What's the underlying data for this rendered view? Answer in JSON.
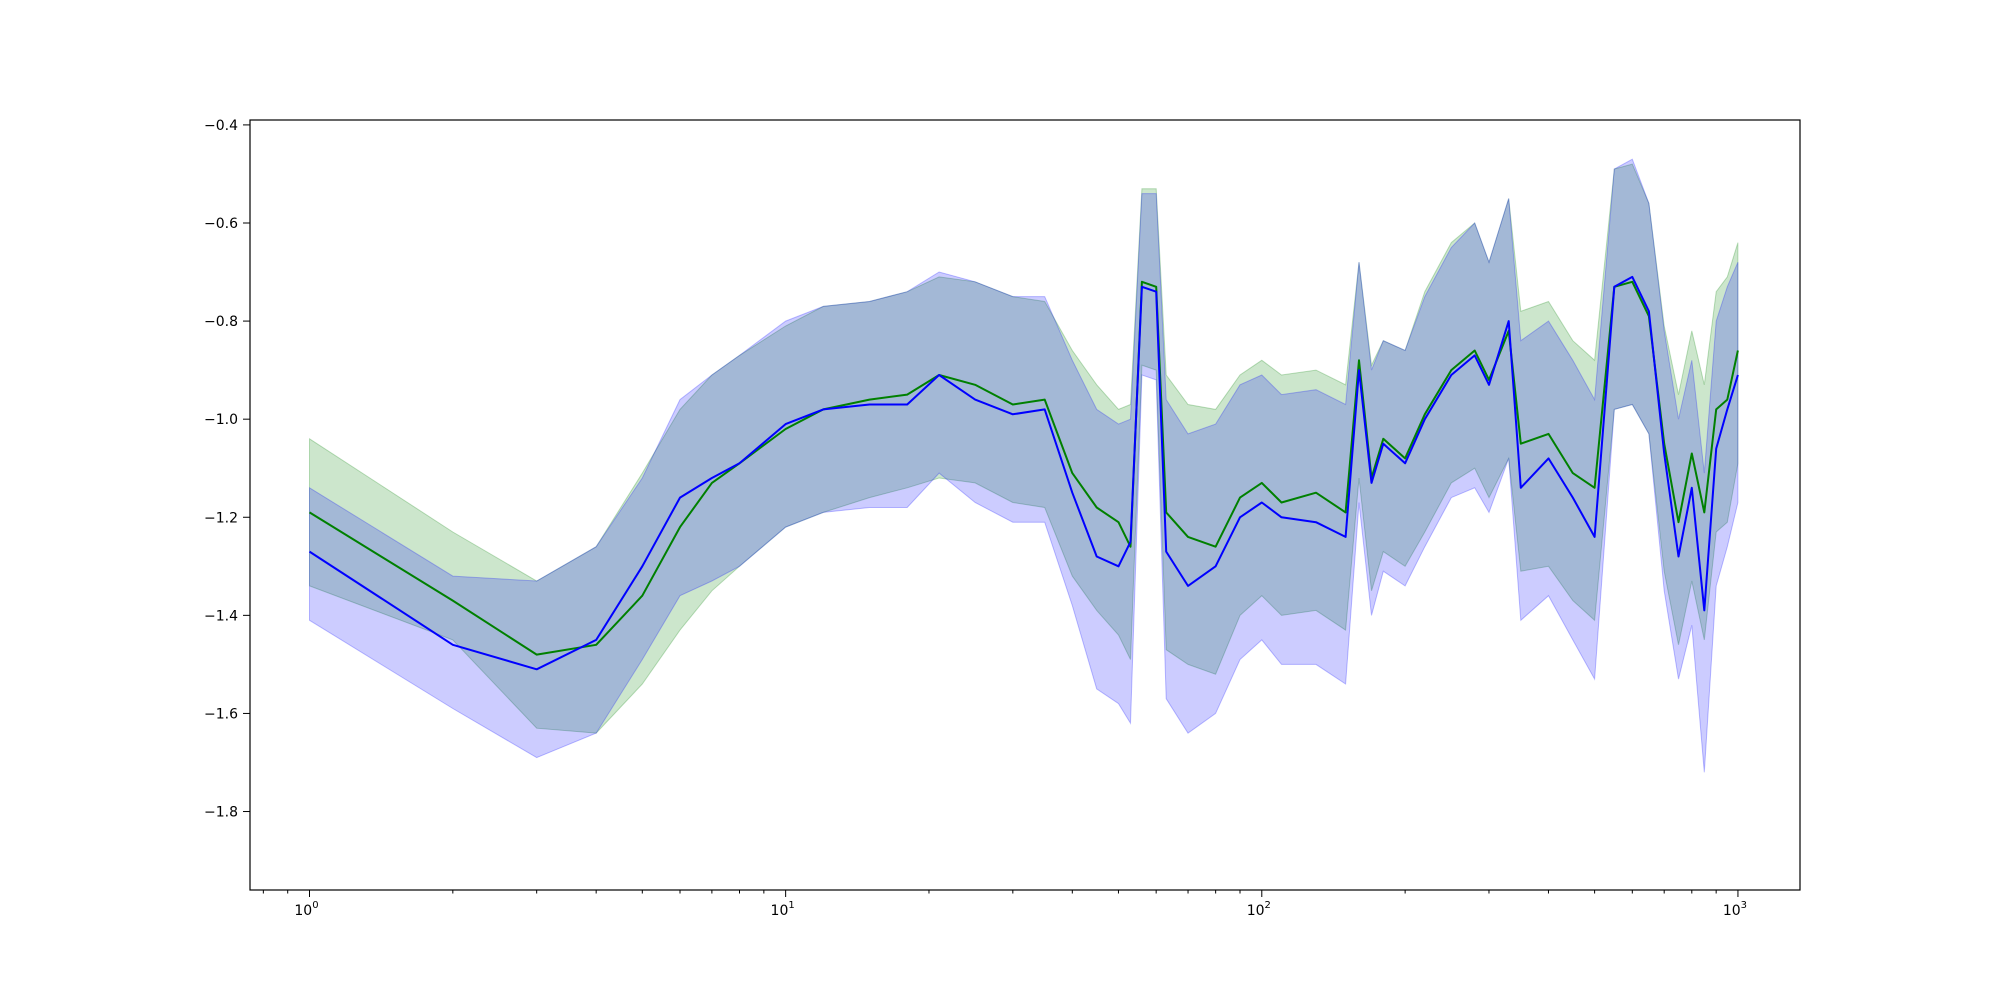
{
  "chart_data": {
    "type": "line",
    "title": "",
    "xlabel": "",
    "ylabel": "",
    "xscale": "log",
    "xlim": [
      0.75,
      1350
    ],
    "ylim": [
      -1.96,
      -0.39
    ],
    "grid": false,
    "legend": "none",
    "x_tick_labels": [
      {
        "value": 1,
        "base": "10",
        "exp": "0"
      },
      {
        "value": 10,
        "base": "10",
        "exp": "1"
      },
      {
        "value": 100,
        "base": "10",
        "exp": "2"
      },
      {
        "value": 1000,
        "base": "10",
        "exp": "3"
      }
    ],
    "y_ticks": [
      -1.8,
      -1.6,
      -1.4,
      -1.2,
      -1.0,
      -0.8,
      -0.6,
      -0.4
    ],
    "y_tick_labels": [
      "−1.8",
      "−1.6",
      "−1.4",
      "−1.2",
      "−1.0",
      "−0.8",
      "−0.6",
      "−0.4"
    ],
    "series": [
      {
        "color": "#008000",
        "band_color": "#008000",
        "band_opacity": 0.2,
        "points": [
          [
            1,
            -1.19,
            -1.04,
            -1.34
          ],
          [
            2,
            -1.37,
            -1.23,
            -1.45
          ],
          [
            3,
            -1.48,
            -1.33,
            -1.63
          ],
          [
            4,
            -1.46,
            -1.26,
            -1.64
          ],
          [
            5,
            -1.36,
            -1.11,
            -1.54
          ],
          [
            6,
            -1.22,
            -0.98,
            -1.43
          ],
          [
            7,
            -1.13,
            -0.91,
            -1.35
          ],
          [
            8,
            -1.09,
            -0.87,
            -1.3
          ],
          [
            10,
            -1.02,
            -0.81,
            -1.22
          ],
          [
            12,
            -0.98,
            -0.77,
            -1.19
          ],
          [
            15,
            -0.96,
            -0.76,
            -1.16
          ],
          [
            18,
            -0.95,
            -0.74,
            -1.14
          ],
          [
            21,
            -0.91,
            -0.71,
            -1.12
          ],
          [
            25,
            -0.93,
            -0.72,
            -1.13
          ],
          [
            30,
            -0.97,
            -0.75,
            -1.17
          ],
          [
            35,
            -0.96,
            -0.76,
            -1.18
          ],
          [
            40,
            -1.11,
            -0.86,
            -1.32
          ],
          [
            45,
            -1.18,
            -0.93,
            -1.39
          ],
          [
            50,
            -1.21,
            -0.98,
            -1.44
          ],
          [
            53,
            -1.26,
            -0.97,
            -1.49
          ],
          [
            56,
            -0.72,
            -0.53,
            -0.89
          ],
          [
            60,
            -0.73,
            -0.53,
            -0.9
          ],
          [
            63,
            -1.19,
            -0.91,
            -1.47
          ],
          [
            70,
            -1.24,
            -0.97,
            -1.5
          ],
          [
            80,
            -1.26,
            -0.98,
            -1.52
          ],
          [
            90,
            -1.16,
            -0.91,
            -1.4
          ],
          [
            100,
            -1.13,
            -0.88,
            -1.36
          ],
          [
            110,
            -1.17,
            -0.91,
            -1.4
          ],
          [
            130,
            -1.15,
            -0.9,
            -1.39
          ],
          [
            150,
            -1.19,
            -0.93,
            -1.43
          ],
          [
            160,
            -0.88,
            -0.68,
            -1.12
          ],
          [
            170,
            -1.12,
            -0.89,
            -1.35
          ],
          [
            180,
            -1.04,
            -0.84,
            -1.27
          ],
          [
            200,
            -1.08,
            -0.86,
            -1.3
          ],
          [
            220,
            -0.99,
            -0.74,
            -1.23
          ],
          [
            250,
            -0.9,
            -0.64,
            -1.13
          ],
          [
            280,
            -0.86,
            -0.6,
            -1.1
          ],
          [
            300,
            -0.92,
            -0.68,
            -1.16
          ],
          [
            330,
            -0.82,
            -0.55,
            -1.08
          ],
          [
            350,
            -1.05,
            -0.78,
            -1.31
          ],
          [
            400,
            -1.03,
            -0.76,
            -1.3
          ],
          [
            450,
            -1.11,
            -0.84,
            -1.37
          ],
          [
            500,
            -1.14,
            -0.88,
            -1.41
          ],
          [
            550,
            -0.73,
            -0.49,
            -0.98
          ],
          [
            600,
            -0.72,
            -0.48,
            -0.97
          ],
          [
            650,
            -0.79,
            -0.56,
            -1.03
          ],
          [
            700,
            -1.05,
            -0.81,
            -1.31
          ],
          [
            750,
            -1.21,
            -0.95,
            -1.46
          ],
          [
            800,
            -1.07,
            -0.82,
            -1.33
          ],
          [
            850,
            -1.19,
            -0.93,
            -1.45
          ],
          [
            900,
            -0.98,
            -0.74,
            -1.23
          ],
          [
            950,
            -0.96,
            -0.71,
            -1.21
          ],
          [
            1000,
            -0.86,
            -0.64,
            -1.09
          ]
        ]
      },
      {
        "color": "#0000ff",
        "band_color": "#0000ff",
        "band_opacity": 0.2,
        "points": [
          [
            1,
            -1.27,
            -1.14,
            -1.41
          ],
          [
            2,
            -1.46,
            -1.32,
            -1.59
          ],
          [
            3,
            -1.51,
            -1.33,
            -1.69
          ],
          [
            4,
            -1.45,
            -1.26,
            -1.64
          ],
          [
            5,
            -1.3,
            -1.12,
            -1.49
          ],
          [
            6,
            -1.16,
            -0.96,
            -1.36
          ],
          [
            7,
            -1.12,
            -0.91,
            -1.33
          ],
          [
            8,
            -1.09,
            -0.87,
            -1.3
          ],
          [
            10,
            -1.01,
            -0.8,
            -1.22
          ],
          [
            12,
            -0.98,
            -0.77,
            -1.19
          ],
          [
            15,
            -0.97,
            -0.76,
            -1.18
          ],
          [
            18,
            -0.97,
            -0.74,
            -1.18
          ],
          [
            21,
            -0.91,
            -0.7,
            -1.11
          ],
          [
            25,
            -0.96,
            -0.72,
            -1.17
          ],
          [
            30,
            -0.99,
            -0.75,
            -1.21
          ],
          [
            35,
            -0.98,
            -0.75,
            -1.21
          ],
          [
            40,
            -1.15,
            -0.88,
            -1.38
          ],
          [
            45,
            -1.28,
            -0.98,
            -1.55
          ],
          [
            50,
            -1.3,
            -1.01,
            -1.58
          ],
          [
            53,
            -1.25,
            -1.0,
            -1.62
          ],
          [
            56,
            -0.73,
            -0.54,
            -0.91
          ],
          [
            60,
            -0.74,
            -0.54,
            -0.92
          ],
          [
            63,
            -1.27,
            -0.96,
            -1.57
          ],
          [
            70,
            -1.34,
            -1.03,
            -1.64
          ],
          [
            80,
            -1.3,
            -1.01,
            -1.6
          ],
          [
            90,
            -1.2,
            -0.93,
            -1.49
          ],
          [
            100,
            -1.17,
            -0.91,
            -1.45
          ],
          [
            110,
            -1.2,
            -0.95,
            -1.5
          ],
          [
            130,
            -1.21,
            -0.94,
            -1.5
          ],
          [
            150,
            -1.24,
            -0.97,
            -1.54
          ],
          [
            160,
            -0.9,
            -0.68,
            -1.17
          ],
          [
            170,
            -1.13,
            -0.9,
            -1.4
          ],
          [
            180,
            -1.05,
            -0.84,
            -1.31
          ],
          [
            200,
            -1.09,
            -0.86,
            -1.34
          ],
          [
            220,
            -1.0,
            -0.75,
            -1.26
          ],
          [
            250,
            -0.91,
            -0.65,
            -1.16
          ],
          [
            280,
            -0.87,
            -0.6,
            -1.14
          ],
          [
            300,
            -0.93,
            -0.68,
            -1.19
          ],
          [
            330,
            -0.8,
            -0.55,
            -1.08
          ],
          [
            350,
            -1.14,
            -0.84,
            -1.41
          ],
          [
            400,
            -1.08,
            -0.8,
            -1.36
          ],
          [
            450,
            -1.16,
            -0.88,
            -1.45
          ],
          [
            500,
            -1.24,
            -0.96,
            -1.53
          ],
          [
            550,
            -0.73,
            -0.49,
            -0.98
          ],
          [
            600,
            -0.71,
            -0.47,
            -0.97
          ],
          [
            650,
            -0.78,
            -0.56,
            -1.03
          ],
          [
            700,
            -1.07,
            -0.82,
            -1.35
          ],
          [
            750,
            -1.28,
            -1.0,
            -1.53
          ],
          [
            800,
            -1.14,
            -0.88,
            -1.42
          ],
          [
            850,
            -1.39,
            -1.11,
            -1.72
          ],
          [
            900,
            -1.06,
            -0.8,
            -1.34
          ],
          [
            950,
            -0.98,
            -0.73,
            -1.26
          ],
          [
            1000,
            -0.91,
            -0.68,
            -1.17
          ]
        ]
      }
    ]
  }
}
